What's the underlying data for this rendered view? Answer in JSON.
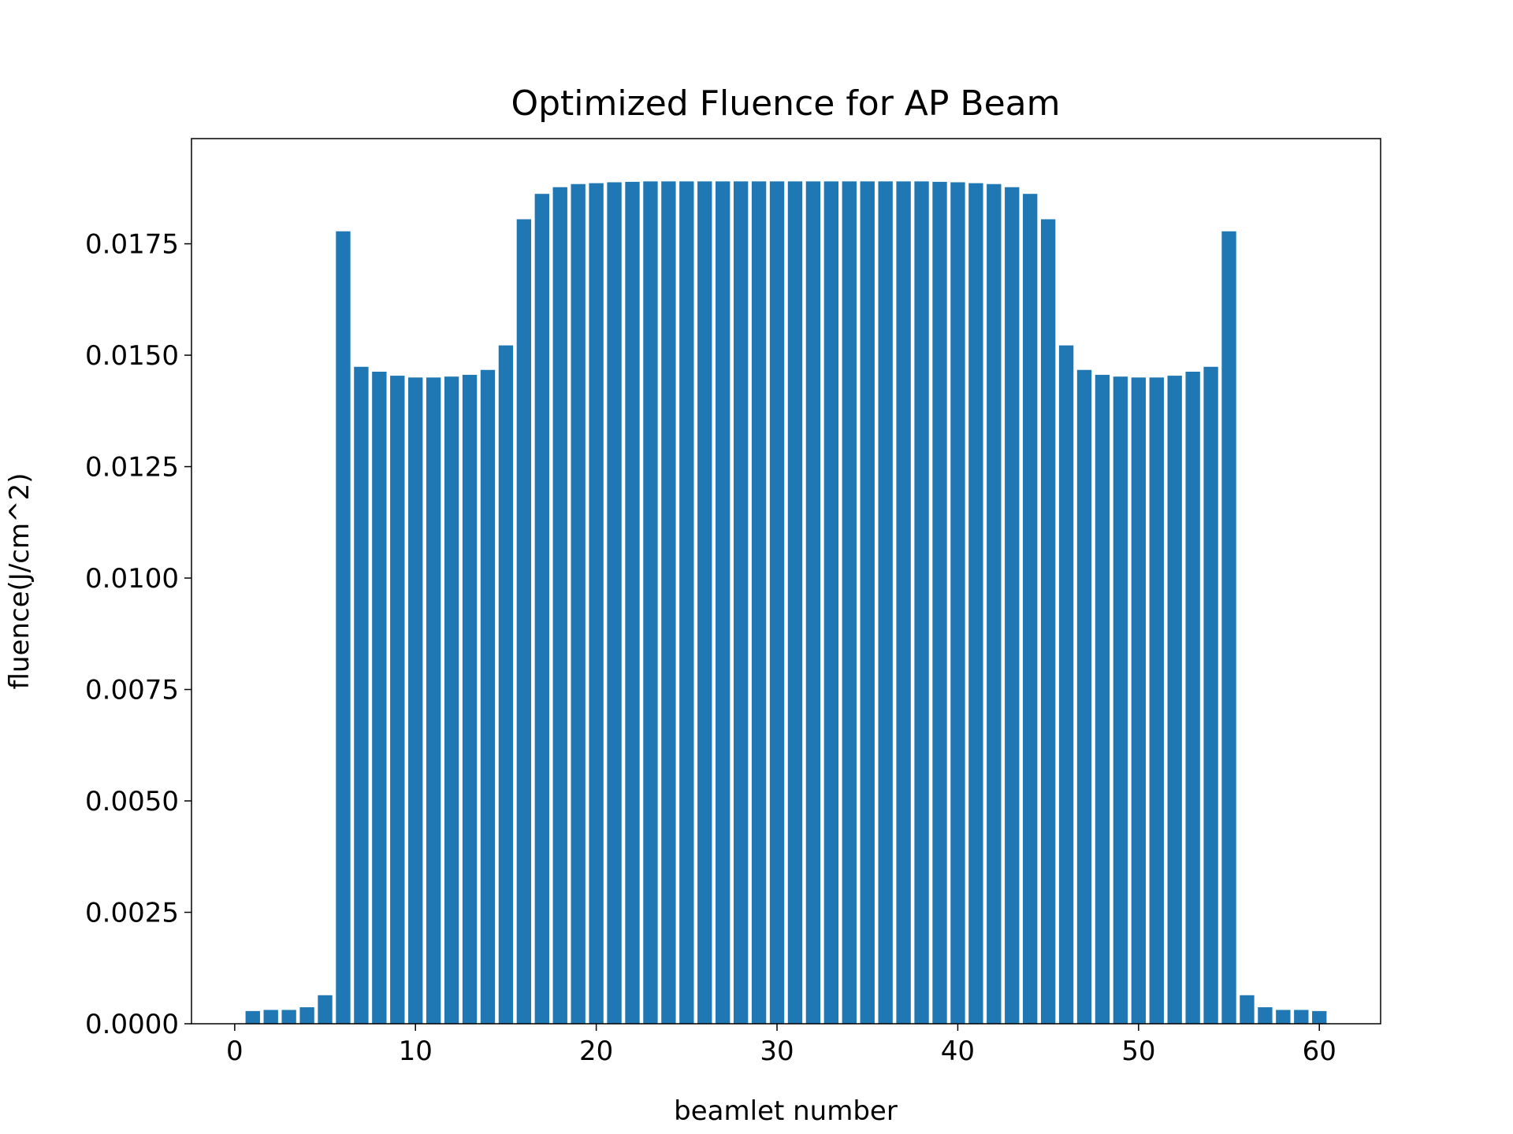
{
  "chart_data": {
    "type": "bar",
    "title": "Optimized Fluence for AP Beam",
    "xlabel": "beamlet number",
    "ylabel": "fluence(J/cm^2)",
    "x": [
      1,
      2,
      3,
      4,
      5,
      6,
      7,
      8,
      9,
      10,
      11,
      12,
      13,
      14,
      15,
      16,
      17,
      18,
      19,
      20,
      21,
      22,
      23,
      24,
      25,
      26,
      27,
      28,
      29,
      30,
      31,
      32,
      33,
      34,
      35,
      36,
      37,
      38,
      39,
      40,
      41,
      42,
      43,
      44,
      45,
      46,
      47,
      48,
      49,
      50,
      51,
      52,
      53,
      54,
      55,
      56,
      57,
      58,
      59,
      60
    ],
    "values": [
      0.000285,
      0.00031,
      0.00031,
      0.00037,
      0.00064,
      0.01778,
      0.01474,
      0.01463,
      0.01454,
      0.0145,
      0.0145,
      0.01452,
      0.01456,
      0.01467,
      0.01522,
      0.01805,
      0.01862,
      0.01877,
      0.01884,
      0.01886,
      0.01888,
      0.01889,
      0.0189,
      0.0189,
      0.0189,
      0.0189,
      0.0189,
      0.0189,
      0.0189,
      0.0189,
      0.0189,
      0.0189,
      0.0189,
      0.0189,
      0.0189,
      0.0189,
      0.0189,
      0.0189,
      0.01889,
      0.01888,
      0.01886,
      0.01884,
      0.01877,
      0.01862,
      0.01805,
      0.01522,
      0.01467,
      0.01456,
      0.01452,
      0.0145,
      0.0145,
      0.01454,
      0.01463,
      0.01474,
      0.01778,
      0.00064,
      0.00037,
      0.00031,
      0.00031,
      0.000285
    ],
    "color": "#1f77b4",
    "bar_width": 0.8,
    "xlim": [
      -2.39,
      63.39
    ],
    "xticks": [
      0,
      10,
      20,
      30,
      40,
      50,
      60
    ],
    "ylim": [
      0,
      0.01986
    ],
    "yticks": [
      {
        "value": 0,
        "label": "0.0000"
      },
      {
        "value": 0.0025,
        "label": "0.0025"
      },
      {
        "value": 0.005,
        "label": "0.0050"
      },
      {
        "value": 0.0075,
        "label": "0.0075"
      },
      {
        "value": 0.01,
        "label": "0.0100"
      },
      {
        "value": 0.0125,
        "label": "0.0125"
      },
      {
        "value": 0.015,
        "label": "0.0150"
      },
      {
        "value": 0.0175,
        "label": "0.0175"
      }
    ],
    "grid": false
  }
}
